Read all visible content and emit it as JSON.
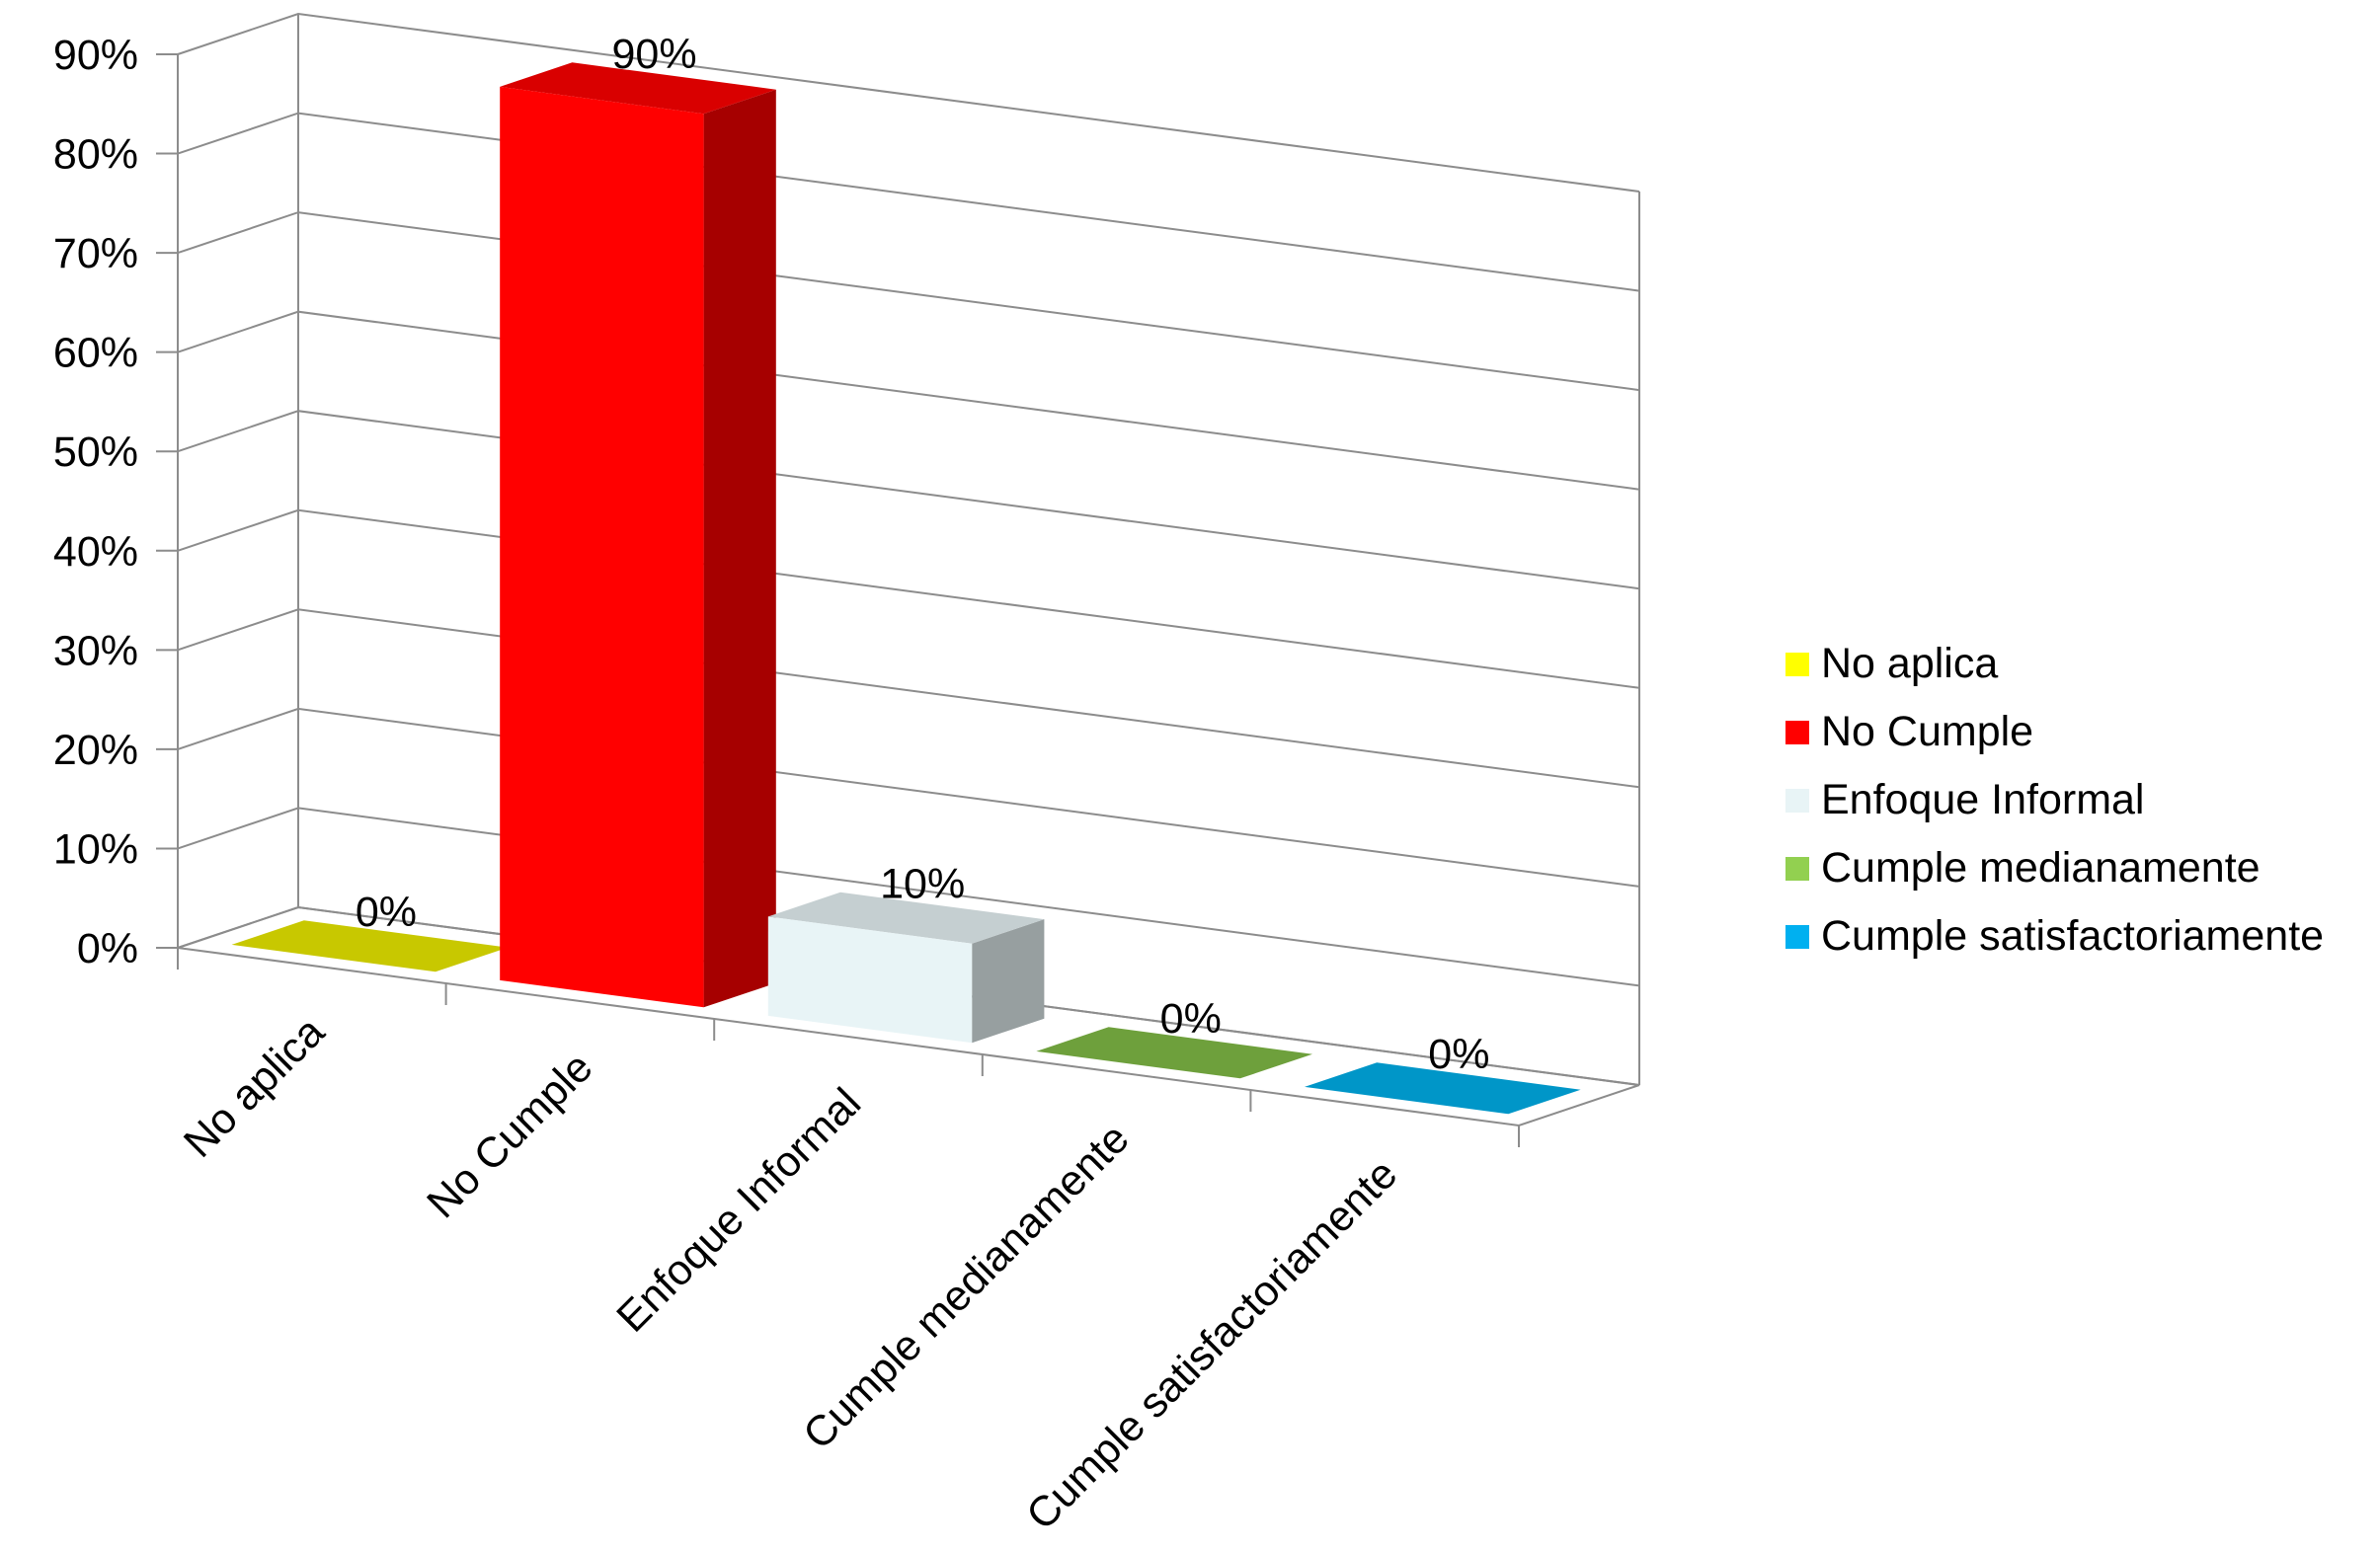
{
  "chart_data": {
    "type": "bar",
    "categories": [
      "No aplica",
      "No Cumple",
      "Enfoque Informal",
      "Cumple medianamente",
      "Cumple satisfactoriamente"
    ],
    "values": [
      0,
      90,
      10,
      0,
      0
    ],
    "data_labels": [
      "0%",
      "90%",
      "10%",
      "0%",
      "0%"
    ],
    "colors": [
      "#c8c800",
      "#ff0000",
      "#e8f4f6",
      "#6ea03c",
      "#0096c8"
    ],
    "y_ticks": [
      "0%",
      "10%",
      "20%",
      "30%",
      "40%",
      "50%",
      "60%",
      "70%",
      "80%",
      "90%"
    ],
    "ylim": [
      0,
      90
    ],
    "grid": true,
    "three_d": true,
    "legend_position": "right",
    "legend": [
      {
        "label": "No aplica",
        "color": "#ffff00"
      },
      {
        "label": "No Cumple",
        "color": "#ff0000"
      },
      {
        "label": "Enfoque Informal",
        "color": "#e8f4f6"
      },
      {
        "label": "Cumple medianamente",
        "color": "#92d050"
      },
      {
        "label": "Cumple satisfactoriamente",
        "color": "#00b0f0"
      }
    ]
  }
}
